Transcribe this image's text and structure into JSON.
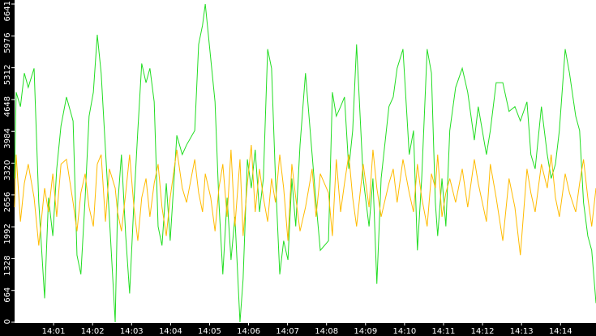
{
  "chart_data": {
    "type": "line",
    "x": [
      0,
      0.04,
      0.15,
      0.25,
      0.35,
      0.5,
      0.62,
      0.77,
      0.87,
      0.98,
      1.08,
      1.19,
      1.33,
      1.5,
      1.6,
      1.7,
      1.81,
      1.91,
      2.02,
      2.12,
      2.22,
      2.33,
      2.43,
      2.58,
      2.64,
      2.74,
      2.85,
      2.95,
      3.06,
      3.16,
      3.26,
      3.37,
      3.47,
      3.58,
      3.68,
      3.78,
      3.89,
      3.99,
      4.16,
      4.3,
      4.41,
      4.62,
      4.72,
      4.82,
      4.89,
      5.03,
      5.14,
      5.24,
      5.34,
      5.45,
      5.55,
      5.65,
      5.78,
      5.86,
      5.97,
      6.07,
      6.17,
      6.28,
      6.38,
      6.49,
      6.59,
      6.69,
      6.8,
      6.9,
      7.01,
      7.11,
      7.21,
      7.32,
      7.46,
      7.63,
      7.73,
      7.84,
      8.05,
      8.15,
      8.25,
      8.36,
      8.46,
      8.57,
      8.67,
      8.77,
      8.94,
      9.09,
      9.19,
      9.29,
      9.4,
      9.6,
      9.71,
      9.81,
      9.96,
      10.12,
      10.23,
      10.33,
      10.44,
      10.58,
      10.69,
      10.79,
      10.85,
      10.96,
      11.06,
      11.16,
      11.31,
      11.48,
      11.62,
      11.79,
      11.89,
      12.1,
      12.2,
      12.35,
      12.52,
      12.68,
      12.83,
      12.97,
      13.14,
      13.24,
      13.35,
      13.51,
      13.66,
      13.76,
      13.87,
      13.97,
      14.12,
      14.23,
      14.39,
      14.49,
      14.59,
      14.7,
      14.8,
      14.91
    ],
    "series": [
      {
        "color": "#22dd22",
        "values": [
          3000,
          4800,
          4500,
          5200,
          4900,
          5300,
          2500,
          500,
          2600,
          1800,
          3200,
          4100,
          4700,
          4200,
          1400,
          1000,
          2600,
          4300,
          4800,
          6000,
          5200,
          3600,
          2200,
          0,
          2400,
          3500,
          1800,
          600,
          2500,
          4000,
          5400,
          5000,
          5300,
          4600,
          2000,
          1600,
          2900,
          1700,
          3900,
          3500,
          3700,
          4000,
          5800,
          6200,
          6641,
          5500,
          4600,
          2500,
          1000,
          2600,
          1300,
          2200,
          0,
          900,
          3400,
          2800,
          3600,
          2300,
          3000,
          5700,
          5300,
          3000,
          1000,
          1700,
          1300,
          3000,
          2000,
          3700,
          5200,
          3500,
          2500,
          1500,
          1700,
          4800,
          4300,
          4500,
          4700,
          3200,
          4000,
          5800,
          3000,
          2000,
          3000,
          800,
          3000,
          4500,
          4700,
          5300,
          5700,
          3500,
          4000,
          1500,
          3000,
          5700,
          5200,
          2500,
          1800,
          3000,
          2000,
          4000,
          4900,
          5300,
          4800,
          3800,
          4500,
          3500,
          4000,
          5000,
          5000,
          4400,
          4500,
          4200,
          4600,
          3500,
          3200,
          4500,
          3500,
          3000,
          3300,
          4000,
          5700,
          5200,
          4300,
          4000,
          2500,
          1800,
          1500,
          400
        ]
      },
      {
        "color": "#ffbb00",
        "values": [
          2400,
          3500,
          2100,
          2900,
          3300,
          2600,
          1600,
          2800,
          2300,
          3100,
          2200,
          3300,
          3400,
          2500,
          1900,
          2700,
          3100,
          2400,
          2000,
          3300,
          3500,
          2100,
          3200,
          2800,
          2300,
          1900,
          2700,
          3500,
          2400,
          1700,
          2600,
          3000,
          2200,
          2900,
          3300,
          2400,
          1800,
          2600,
          3600,
          2800,
          2500,
          3400,
          2700,
          2300,
          3100,
          2600,
          1900,
          2800,
          3300,
          2200,
          3600,
          2000,
          3400,
          1800,
          2900,
          3700,
          2300,
          3200,
          2600,
          2100,
          3000,
          2500,
          3500,
          2800,
          1700,
          3300,
          2600,
          1900,
          2400,
          3200,
          2200,
          3100,
          2700,
          1800,
          3400,
          2300,
          2900,
          3500,
          2600,
          2000,
          3300,
          2400,
          3600,
          2800,
          2200,
          2900,
          3200,
          2500,
          3400,
          2700,
          2300,
          3300,
          2600,
          2000,
          3100,
          2800,
          3500,
          2200,
          2700,
          3000,
          2500,
          3200,
          2400,
          3400,
          2900,
          2100,
          3300,
          2600,
          1700,
          3000,
          2400,
          1400,
          3200,
          2700,
          2300,
          3300,
          2800,
          3500,
          2600,
          2200,
          3100,
          2700,
          2300,
          2900,
          3400,
          2600,
          2000,
          2800
        ]
      }
    ],
    "xlim": [
      0,
      14.91
    ],
    "xticks": [
      {
        "value": 1,
        "label": "14:01"
      },
      {
        "value": 2,
        "label": "14:02"
      },
      {
        "value": 3,
        "label": "14:03"
      },
      {
        "value": 4,
        "label": "14:04"
      },
      {
        "value": 5,
        "label": "14:05"
      },
      {
        "value": 6,
        "label": "14:06"
      },
      {
        "value": 7,
        "label": "14:07"
      },
      {
        "value": 8,
        "label": "14:08"
      },
      {
        "value": 9,
        "label": "14:09"
      },
      {
        "value": 10,
        "label": "14:10"
      },
      {
        "value": 11,
        "label": "14:11"
      },
      {
        "value": 12,
        "label": "14:12"
      },
      {
        "value": 13,
        "label": "14:13"
      },
      {
        "value": 14,
        "label": "14:14"
      }
    ],
    "ylim": [
      0,
      6641
    ],
    "yticks": [
      0,
      664,
      1328,
      1992,
      2656,
      3320,
      3984,
      4648,
      5312,
      5976,
      6641
    ]
  }
}
